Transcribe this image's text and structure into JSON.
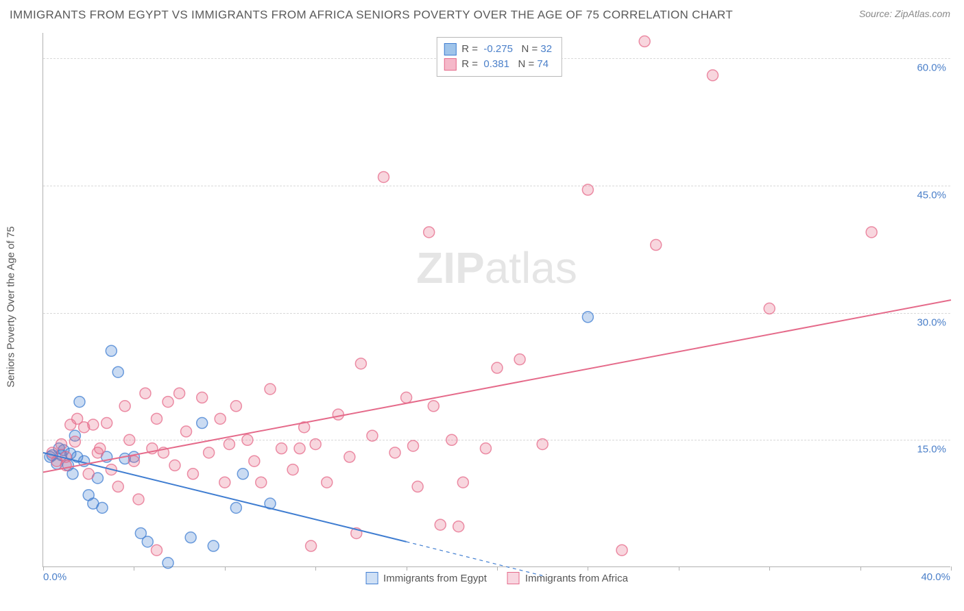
{
  "header": {
    "title": "IMMIGRANTS FROM EGYPT VS IMMIGRANTS FROM AFRICA SENIORS POVERTY OVER THE AGE OF 75 CORRELATION CHART",
    "source": "Source: ZipAtlas.com"
  },
  "watermark": "ZIPatlas",
  "chart": {
    "type": "scatter",
    "y_axis_title": "Seniors Poverty Over the Age of 75",
    "xlim": [
      0,
      40
    ],
    "ylim": [
      0,
      63
    ],
    "x_ticks": [
      0,
      4,
      8,
      12,
      16,
      20,
      24,
      28,
      32,
      36,
      40
    ],
    "y_gridlines": [
      15,
      30,
      45,
      60
    ],
    "y_tick_labels": [
      "15.0%",
      "30.0%",
      "45.0%",
      "60.0%"
    ],
    "x_tick_labels_shown": {
      "left": "0.0%",
      "right": "40.0%"
    },
    "background_color": "#ffffff",
    "grid_color": "#d8d8d8",
    "axis_color": "#b0b0b0",
    "label_color": "#4a7fc9",
    "title_color": "#5a5a5a",
    "point_radius": 8,
    "point_fill_opacity": 0.28,
    "point_stroke_width": 1.5,
    "trend_line_width": 2,
    "series": [
      {
        "name": "Immigrants from Egypt",
        "color": "#3f7dd1",
        "fill": "#9fc4ea",
        "R": "-0.275",
        "N": "32",
        "trend": {
          "x1": 0,
          "y1": 13.5,
          "x2": 16,
          "y2": 3.0,
          "dash_after_x": 16,
          "dash_x2": 22,
          "dash_y2": -1.0
        },
        "points": [
          [
            0.3,
            13.0
          ],
          [
            0.4,
            13.2
          ],
          [
            0.6,
            12.2
          ],
          [
            0.7,
            14.0
          ],
          [
            0.8,
            13.2
          ],
          [
            0.9,
            13.8
          ],
          [
            1.1,
            12.0
          ],
          [
            1.2,
            13.4
          ],
          [
            1.3,
            11.0
          ],
          [
            1.4,
            15.5
          ],
          [
            1.5,
            13.0
          ],
          [
            1.6,
            19.5
          ],
          [
            1.8,
            12.5
          ],
          [
            2.0,
            8.5
          ],
          [
            2.2,
            7.5
          ],
          [
            2.4,
            10.5
          ],
          [
            2.6,
            7.0
          ],
          [
            2.8,
            13.0
          ],
          [
            3.0,
            25.5
          ],
          [
            3.3,
            23.0
          ],
          [
            3.6,
            12.8
          ],
          [
            4.0,
            13.0
          ],
          [
            4.3,
            4.0
          ],
          [
            4.6,
            3.0
          ],
          [
            5.5,
            0.5
          ],
          [
            6.5,
            3.5
          ],
          [
            7.0,
            17.0
          ],
          [
            8.5,
            7.0
          ],
          [
            8.8,
            11.0
          ],
          [
            10.0,
            7.5
          ],
          [
            24.0,
            29.5
          ],
          [
            7.5,
            2.5
          ]
        ]
      },
      {
        "name": "Immigrants from Africa",
        "color": "#e56a8a",
        "fill": "#f5b8c9",
        "R": "0.381",
        "N": "74",
        "trend": {
          "x1": 0,
          "y1": 11.2,
          "x2": 40,
          "y2": 31.5
        },
        "points": [
          [
            0.4,
            13.5
          ],
          [
            0.8,
            14.5
          ],
          [
            1.0,
            12.0
          ],
          [
            1.2,
            16.8
          ],
          [
            1.4,
            14.8
          ],
          [
            1.5,
            17.5
          ],
          [
            1.8,
            16.5
          ],
          [
            2.0,
            11.0
          ],
          [
            2.2,
            16.8
          ],
          [
            2.4,
            13.5
          ],
          [
            2.8,
            17.0
          ],
          [
            3.0,
            11.5
          ],
          [
            3.3,
            9.5
          ],
          [
            3.6,
            19.0
          ],
          [
            3.8,
            15.0
          ],
          [
            4.0,
            12.5
          ],
          [
            4.2,
            8.0
          ],
          [
            4.5,
            20.5
          ],
          [
            5.0,
            17.5
          ],
          [
            5.3,
            13.5
          ],
          [
            5.5,
            19.5
          ],
          [
            5.8,
            12.0
          ],
          [
            6.0,
            20.5
          ],
          [
            6.3,
            16.0
          ],
          [
            6.6,
            11.0
          ],
          [
            7.0,
            20.0
          ],
          [
            7.3,
            13.5
          ],
          [
            7.8,
            17.5
          ],
          [
            8.0,
            10.0
          ],
          [
            8.5,
            19.0
          ],
          [
            9.0,
            15.0
          ],
          [
            9.3,
            12.5
          ],
          [
            9.6,
            10.0
          ],
          [
            10.0,
            21.0
          ],
          [
            10.5,
            14.0
          ],
          [
            11.0,
            11.5
          ],
          [
            11.5,
            16.5
          ],
          [
            11.8,
            2.5
          ],
          [
            12.0,
            14.5
          ],
          [
            12.5,
            10.0
          ],
          [
            13.0,
            18.0
          ],
          [
            13.5,
            13.0
          ],
          [
            14.0,
            24.0
          ],
          [
            14.5,
            15.5
          ],
          [
            15.0,
            46.0
          ],
          [
            15.5,
            13.5
          ],
          [
            16.0,
            20.0
          ],
          [
            16.5,
            9.5
          ],
          [
            17.0,
            39.5
          ],
          [
            17.5,
            5.0
          ],
          [
            18.0,
            15.0
          ],
          [
            18.3,
            4.8
          ],
          [
            18.5,
            10.0
          ],
          [
            19.5,
            14.0
          ],
          [
            20.0,
            23.5
          ],
          [
            21.0,
            24.5
          ],
          [
            22.0,
            14.5
          ],
          [
            24.0,
            44.5
          ],
          [
            25.5,
            2.0
          ],
          [
            26.5,
            62.0
          ],
          [
            27.0,
            38.0
          ],
          [
            29.5,
            58.0
          ],
          [
            32.0,
            30.5
          ],
          [
            36.5,
            39.5
          ],
          [
            5.0,
            2.0
          ],
          [
            13.8,
            4.0
          ],
          [
            1.0,
            13.0
          ],
          [
            0.6,
            12.5
          ],
          [
            2.5,
            14.0
          ],
          [
            4.8,
            14.0
          ],
          [
            8.2,
            14.5
          ],
          [
            11.3,
            14.0
          ],
          [
            16.3,
            14.3
          ],
          [
            17.2,
            19.0
          ]
        ]
      }
    ],
    "legend_bottom": [
      {
        "label": "Immigrants from Egypt",
        "swatch_fill": "#cfe0f5",
        "swatch_border": "#3f7dd1"
      },
      {
        "label": "Immigrants from Africa",
        "swatch_fill": "#f8d6e0",
        "swatch_border": "#e56a8a"
      }
    ]
  }
}
